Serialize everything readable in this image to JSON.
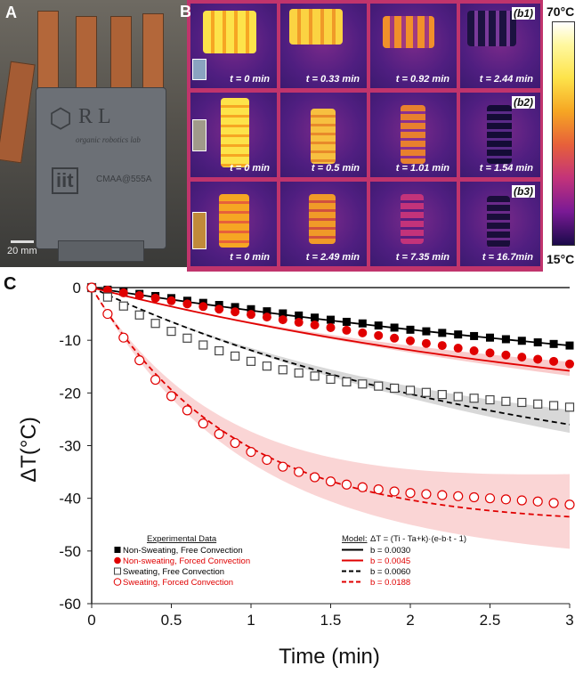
{
  "figure": {
    "panels": {
      "a": "A",
      "b": "B",
      "c": "C"
    },
    "photo": {
      "logo_text": "R L",
      "logo_subtext": "organic robotics lab",
      "plate_text": "CMAA@555A",
      "brand": "iit",
      "scale_bar": "20 mm"
    },
    "thermal": {
      "rows": [
        {
          "label": "(b1)",
          "times": [
            "t = 0 min",
            "t = 0.33 min",
            "t = 0.92 min",
            "t = 2.44 min"
          ]
        },
        {
          "label": "(b2)",
          "times": [
            "t = 0 min",
            "t = 0.5 min",
            "t = 1.01 min",
            "t = 1.54 min"
          ]
        },
        {
          "label": "(b3)",
          "times": [
            "t = 0 min",
            "t = 2.49 min",
            "t = 7.35 min",
            "t = 16.7min"
          ]
        }
      ],
      "colorbar_max": "70°C",
      "colorbar_min": "15°C"
    },
    "legend": {
      "experimental_title": "Experimental Data",
      "model_title": "Model:",
      "model_equation": "ΔT = (Ti - Ta+k)·(e-b·t - 1)",
      "entries": [
        {
          "label": "Non-Sweating, Free Convection",
          "model": "b = 0.0030",
          "color": "#000000"
        },
        {
          "label": "Non-sweating, Forced Convection",
          "model": "b = 0.0045",
          "color": "#e00000"
        },
        {
          "label": "Sweating, Free Convection",
          "model": "b = 0.0060",
          "color": "#000000"
        },
        {
          "label": "Sweating, Forced Convection",
          "model": "b = 0.0188",
          "color": "#e00000"
        }
      ]
    }
  },
  "chart_data": {
    "type": "scatter",
    "xlabel": "Time (min)",
    "ylabel": "ΔT(°C)",
    "xlim": [
      0,
      3
    ],
    "ylim": [
      -60,
      0
    ],
    "xticks": [
      "0",
      "0.5",
      "1",
      "1.5",
      "2",
      "2.5",
      "3"
    ],
    "yticks": [
      "0",
      "-10",
      "-20",
      "-30",
      "-40",
      "-50",
      "-60"
    ],
    "x": [
      0,
      0.1,
      0.2,
      0.3,
      0.4,
      0.5,
      0.6,
      0.7,
      0.8,
      0.9,
      1.0,
      1.1,
      1.2,
      1.3,
      1.4,
      1.5,
      1.6,
      1.7,
      1.8,
      1.9,
      2.0,
      2.1,
      2.2,
      2.3,
      2.4,
      2.5,
      2.6,
      2.7,
      2.8,
      2.9,
      3.0
    ],
    "series": [
      {
        "name": "Non-Sweating, Free Convection",
        "marker": "square-filled",
        "color": "#000000",
        "values": [
          0,
          -0.4,
          -0.8,
          -1.2,
          -1.6,
          -2.0,
          -2.5,
          -2.9,
          -3.3,
          -3.7,
          -4.1,
          -4.5,
          -4.9,
          -5.3,
          -5.7,
          -6.1,
          -6.5,
          -6.8,
          -7.2,
          -7.6,
          -8.0,
          -8.3,
          -8.6,
          -8.9,
          -9.2,
          -9.5,
          -9.8,
          -10.1,
          -10.4,
          -10.7,
          -11.0
        ]
      },
      {
        "name": "Non-sweating, Forced Convection",
        "marker": "circle-filled",
        "color": "#e00000",
        "values": [
          0,
          -0.5,
          -1.0,
          -1.5,
          -2.0,
          -2.5,
          -3.1,
          -3.6,
          -4.1,
          -4.6,
          -5.1,
          -5.6,
          -6.1,
          -6.6,
          -7.1,
          -7.6,
          -8.1,
          -8.6,
          -9.1,
          -9.6,
          -10.1,
          -10.6,
          -11.0,
          -11.5,
          -12.0,
          -12.4,
          -12.8,
          -13.2,
          -13.6,
          -14.0,
          -14.5
        ]
      },
      {
        "name": "Sweating, Free Convection",
        "marker": "square-open",
        "color": "#000000",
        "values": [
          0,
          -1.8,
          -3.5,
          -5.2,
          -6.8,
          -8.3,
          -9.6,
          -10.9,
          -12.0,
          -13.0,
          -14.0,
          -14.9,
          -15.6,
          -16.2,
          -16.8,
          -17.4,
          -17.9,
          -18.3,
          -18.7,
          -19.1,
          -19.5,
          -19.9,
          -20.3,
          -20.7,
          -21.0,
          -21.3,
          -21.6,
          -21.8,
          -22.1,
          -22.4,
          -22.7
        ]
      },
      {
        "name": "Sweating, Forced Convection",
        "marker": "circle-open",
        "color": "#e00000",
        "values": [
          0,
          -5,
          -9.5,
          -13.8,
          -17.5,
          -20.6,
          -23.3,
          -25.8,
          -27.8,
          -29.5,
          -31.2,
          -32.7,
          -34.0,
          -35.0,
          -36.0,
          -36.8,
          -37.4,
          -37.9,
          -38.3,
          -38.7,
          -39.0,
          -39.2,
          -39.4,
          -39.6,
          -39.8,
          -40.0,
          -40.2,
          -40.4,
          -40.6,
          -40.9,
          -41.2
        ]
      }
    ],
    "models": [
      {
        "b": 0.003,
        "end_value": -11.0,
        "color": "#000000",
        "dash": "solid",
        "band": false
      },
      {
        "b": 0.0045,
        "end_value": -15.8,
        "color": "#e00000",
        "dash": "solid",
        "band": true,
        "band_color": "#f4a0a0"
      },
      {
        "b": 0.006,
        "end_value": -26.0,
        "color": "#000000",
        "dash": "dashed",
        "band": true,
        "band_color": "#b8b8b8"
      },
      {
        "b": 0.0188,
        "end_value": -43.5,
        "color": "#e00000",
        "dash": "dashed",
        "band": true,
        "band_color": "#f7b9b9"
      }
    ]
  }
}
